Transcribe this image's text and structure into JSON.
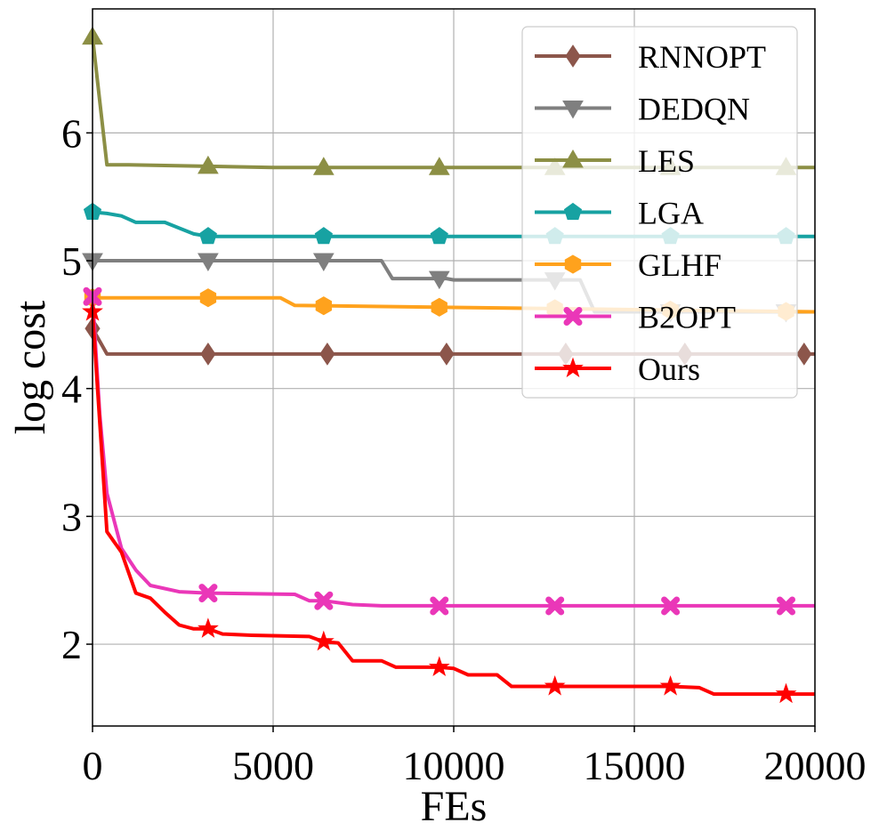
{
  "chart_data": {
    "type": "line",
    "title": "",
    "xlabel": "FEs",
    "ylabel": "log cost",
    "xlim": [
      0,
      20000
    ],
    "ylim": [
      1.36,
      6.97
    ],
    "xticks": [
      0,
      5000,
      10000,
      15000,
      20000
    ],
    "xtick_labels": [
      "0",
      "5000",
      "10000",
      "15000",
      "20000"
    ],
    "yticks": [
      2,
      3,
      4,
      5,
      6
    ],
    "ytick_labels": [
      "2",
      "3",
      "4",
      "5",
      "6"
    ],
    "grid": true,
    "legend_position": "top-right",
    "series": [
      {
        "name": "RNNOPT",
        "color": "#8c564b",
        "marker": "diamond",
        "x": [
          0,
          400,
          20000
        ],
        "y": [
          4.47,
          4.27,
          4.27
        ],
        "marker_x": [
          0,
          3200,
          6500,
          9800,
          13100,
          16400,
          19700
        ]
      },
      {
        "name": "DEDQN",
        "color": "#7f7f7f",
        "marker": "triangle-down",
        "x": [
          0,
          8000,
          8300,
          9800,
          10000,
          13500,
          13900,
          20000
        ],
        "y": [
          5.0,
          5.0,
          4.86,
          4.86,
          4.85,
          4.85,
          4.6,
          4.6
        ],
        "marker_x": [
          0,
          3200,
          6400,
          9600,
          12800,
          16000,
          19200
        ]
      },
      {
        "name": "LES",
        "color": "#8c8f45",
        "marker": "triangle-up",
        "x": [
          0,
          400,
          1000,
          3000,
          5000,
          20000
        ],
        "y": [
          6.75,
          5.75,
          5.75,
          5.74,
          5.73,
          5.73
        ],
        "marker_x": [
          0,
          3200,
          6400,
          9600,
          12800,
          16000,
          19200
        ]
      },
      {
        "name": "LGA",
        "color": "#17a2a2",
        "marker": "pentagon",
        "x": [
          0,
          400,
          800,
          1200,
          2000,
          2800,
          3200,
          20000
        ],
        "y": [
          5.38,
          5.37,
          5.35,
          5.3,
          5.3,
          5.21,
          5.19,
          5.19
        ],
        "marker_x": [
          0,
          3200,
          6400,
          9600,
          12800,
          16000,
          19200
        ]
      },
      {
        "name": "GLHF",
        "color": "#ffa21d",
        "marker": "hexagon",
        "x": [
          0,
          5200,
          5600,
          20000
        ],
        "y": [
          4.71,
          4.71,
          4.65,
          4.6
        ],
        "marker_x": [
          0,
          3200,
          6400,
          9600,
          12800,
          16000,
          19200
        ]
      },
      {
        "name": "B2OPT",
        "color": "#ea37b8",
        "marker": "x-filled",
        "x": [
          0,
          200,
          400,
          800,
          1200,
          1600,
          2400,
          3200,
          5600,
          6000,
          6400,
          7200,
          8000,
          20000
        ],
        "y": [
          4.72,
          3.8,
          3.18,
          2.75,
          2.58,
          2.46,
          2.41,
          2.4,
          2.39,
          2.34,
          2.34,
          2.31,
          2.3,
          2.3
        ],
        "marker_x": [
          0,
          3200,
          6400,
          9600,
          12800,
          16000,
          19200
        ]
      },
      {
        "name": "Ours",
        "color": "#ff0000",
        "marker": "star",
        "x": [
          0,
          400,
          800,
          1200,
          1600,
          2000,
          2400,
          2800,
          3200,
          3600,
          4400,
          6000,
          6400,
          6800,
          7200,
          8000,
          8400,
          9600,
          10000,
          10400,
          11200,
          11600,
          12800,
          16000,
          16800,
          17200,
          20000
        ],
        "y": [
          4.6,
          2.88,
          2.72,
          2.4,
          2.36,
          2.25,
          2.15,
          2.12,
          2.12,
          2.08,
          2.07,
          2.06,
          2.02,
          2.01,
          1.87,
          1.87,
          1.82,
          1.82,
          1.81,
          1.76,
          1.76,
          1.67,
          1.67,
          1.67,
          1.66,
          1.61,
          1.61
        ],
        "marker_x": [
          0,
          3200,
          6400,
          9600,
          12800,
          16000,
          19200
        ]
      }
    ]
  }
}
